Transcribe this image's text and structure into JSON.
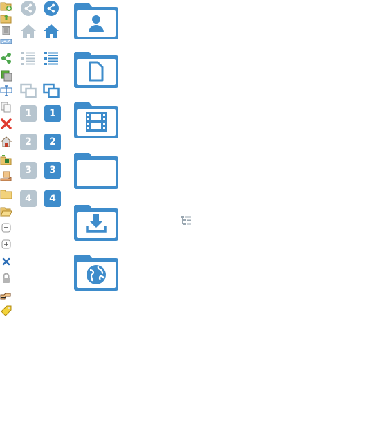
{
  "colors": {
    "accent_blue": "#3e8ccb",
    "muted_grey": "#b7c5cf",
    "folder_blue": "#3e8ccb"
  },
  "small_icons": [
    "folder-add-icon",
    "folder-upload-icon",
    "trash-icon",
    "image-strip-icon",
    "share-green-icon",
    "stack-icon",
    "rename-icon",
    "copy-icon",
    "delete-red-icon",
    "home-icon",
    "folder-download-icon",
    "hand-drop-icon",
    "folder-closed-icon",
    "folder-open-icon",
    "collapse-icon",
    "expand-icon",
    "close-blue-icon",
    "lock-icon",
    "hand-point-icon",
    "tag-icon"
  ],
  "badges": {
    "one": "1",
    "two": "2",
    "three": "3",
    "four": "4"
  },
  "folders": [
    "folder-user-icon",
    "folder-document-icon",
    "folder-video-icon",
    "folder-plain-icon",
    "folder-download-icon",
    "folder-globe-icon"
  ]
}
